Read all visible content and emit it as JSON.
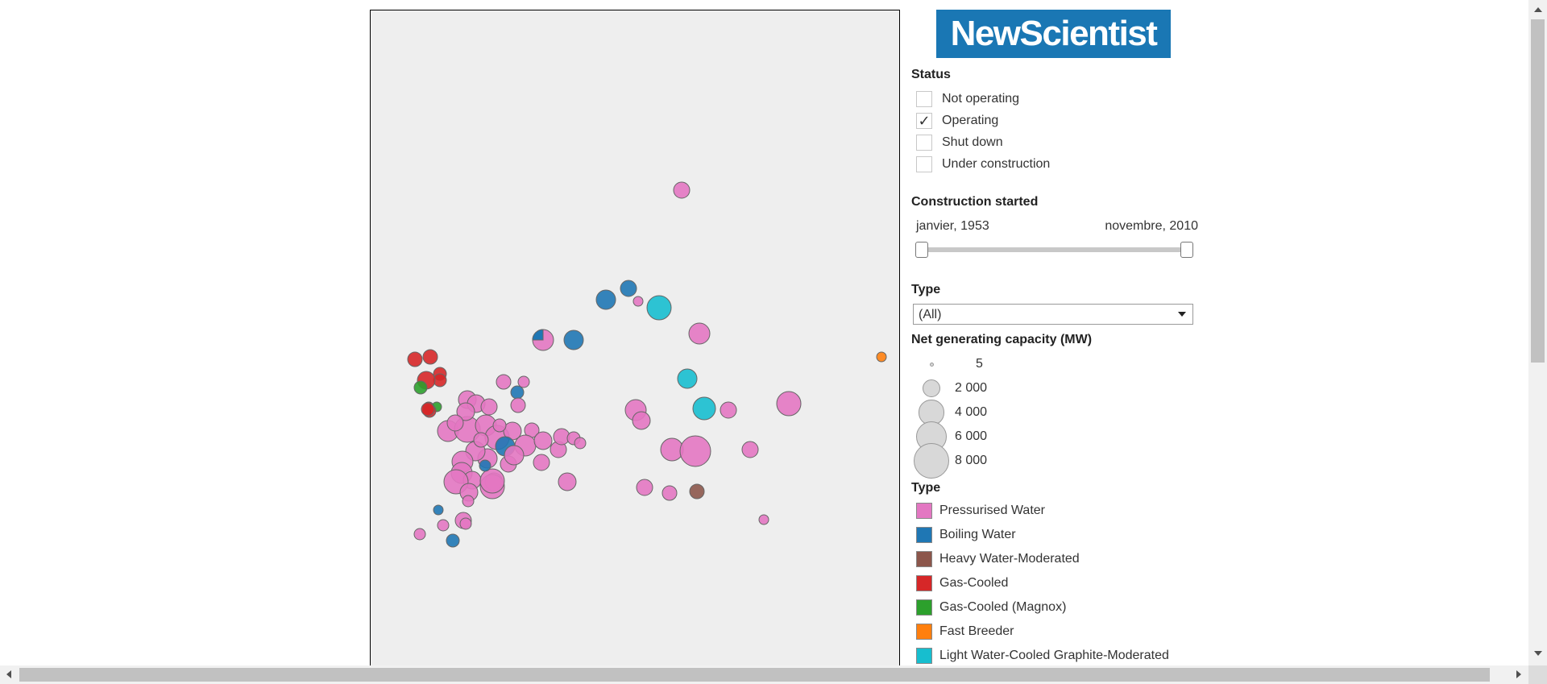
{
  "logo": {
    "text": "NewScientist"
  },
  "status": {
    "title": "Status",
    "options": [
      {
        "label": "Not operating",
        "checked": false
      },
      {
        "label": "Operating",
        "checked": true
      },
      {
        "label": "Shut down",
        "checked": false
      },
      {
        "label": "Under construction",
        "checked": false
      }
    ]
  },
  "construction": {
    "title": "Construction started",
    "start_label": "janvier, 1953",
    "end_label": "novembre, 2010"
  },
  "type_filter": {
    "title": "Type",
    "selected": "(All)"
  },
  "capacity": {
    "title": "Net generating capacity (MW)",
    "sizes": [
      {
        "label": "5",
        "value": 5
      },
      {
        "label": "2 000",
        "value": 2000
      },
      {
        "label": "4 000",
        "value": 4000
      },
      {
        "label": "6 000",
        "value": 6000
      },
      {
        "label": "8 000",
        "value": 8000
      }
    ]
  },
  "type_legend": {
    "title": "Type",
    "items": [
      {
        "label": "Pressurised Water",
        "color": "#e377c2"
      },
      {
        "label": "Boiling Water",
        "color": "#1f77b4"
      },
      {
        "label": "Heavy Water-Moderated",
        "color": "#8c564b"
      },
      {
        "label": "Gas-Cooled",
        "color": "#d62728"
      },
      {
        "label": "Gas-Cooled (Magnox)",
        "color": "#2ca02c"
      },
      {
        "label": "Fast Breeder",
        "color": "#ff7f0e"
      },
      {
        "label": "Light Water-Cooled Graphite-Moderated",
        "color": "#17becf"
      }
    ]
  },
  "icons": {
    "check": "check-icon",
    "dropdown": "chevron-down-icon"
  }
}
